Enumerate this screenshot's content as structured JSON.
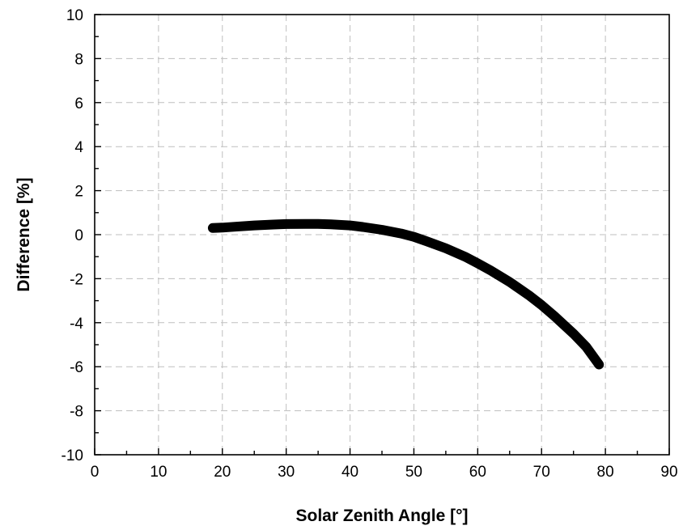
{
  "chart_data": {
    "type": "line",
    "title": "",
    "xlabel": "Solar Zenith Angle [°]",
    "ylabel": "Difference [%]",
    "xlim": [
      0,
      90
    ],
    "ylim": [
      -10,
      10
    ],
    "x_ticks": [
      0,
      10,
      20,
      30,
      40,
      50,
      60,
      70,
      80,
      90
    ],
    "y_ticks": [
      -10,
      -8,
      -6,
      -4,
      -2,
      0,
      2,
      4,
      6,
      8,
      10
    ],
    "x_minor_step": 5,
    "y_minor_step": 1,
    "grid": true,
    "legend": "none",
    "series": [
      {
        "color": "#000000",
        "x": [
          18.5,
          20,
          22,
          25,
          28,
          30,
          33,
          35,
          37,
          40,
          42,
          45,
          48,
          50,
          52,
          55,
          58,
          60,
          62,
          65,
          68,
          70,
          72,
          75,
          77,
          79
        ],
        "y": [
          0.3,
          0.32,
          0.36,
          0.42,
          0.46,
          0.48,
          0.49,
          0.49,
          0.47,
          0.42,
          0.35,
          0.22,
          0.05,
          -0.1,
          -0.3,
          -0.62,
          -1.0,
          -1.3,
          -1.62,
          -2.15,
          -2.75,
          -3.2,
          -3.7,
          -4.5,
          -5.1,
          -5.9
        ]
      }
    ]
  }
}
